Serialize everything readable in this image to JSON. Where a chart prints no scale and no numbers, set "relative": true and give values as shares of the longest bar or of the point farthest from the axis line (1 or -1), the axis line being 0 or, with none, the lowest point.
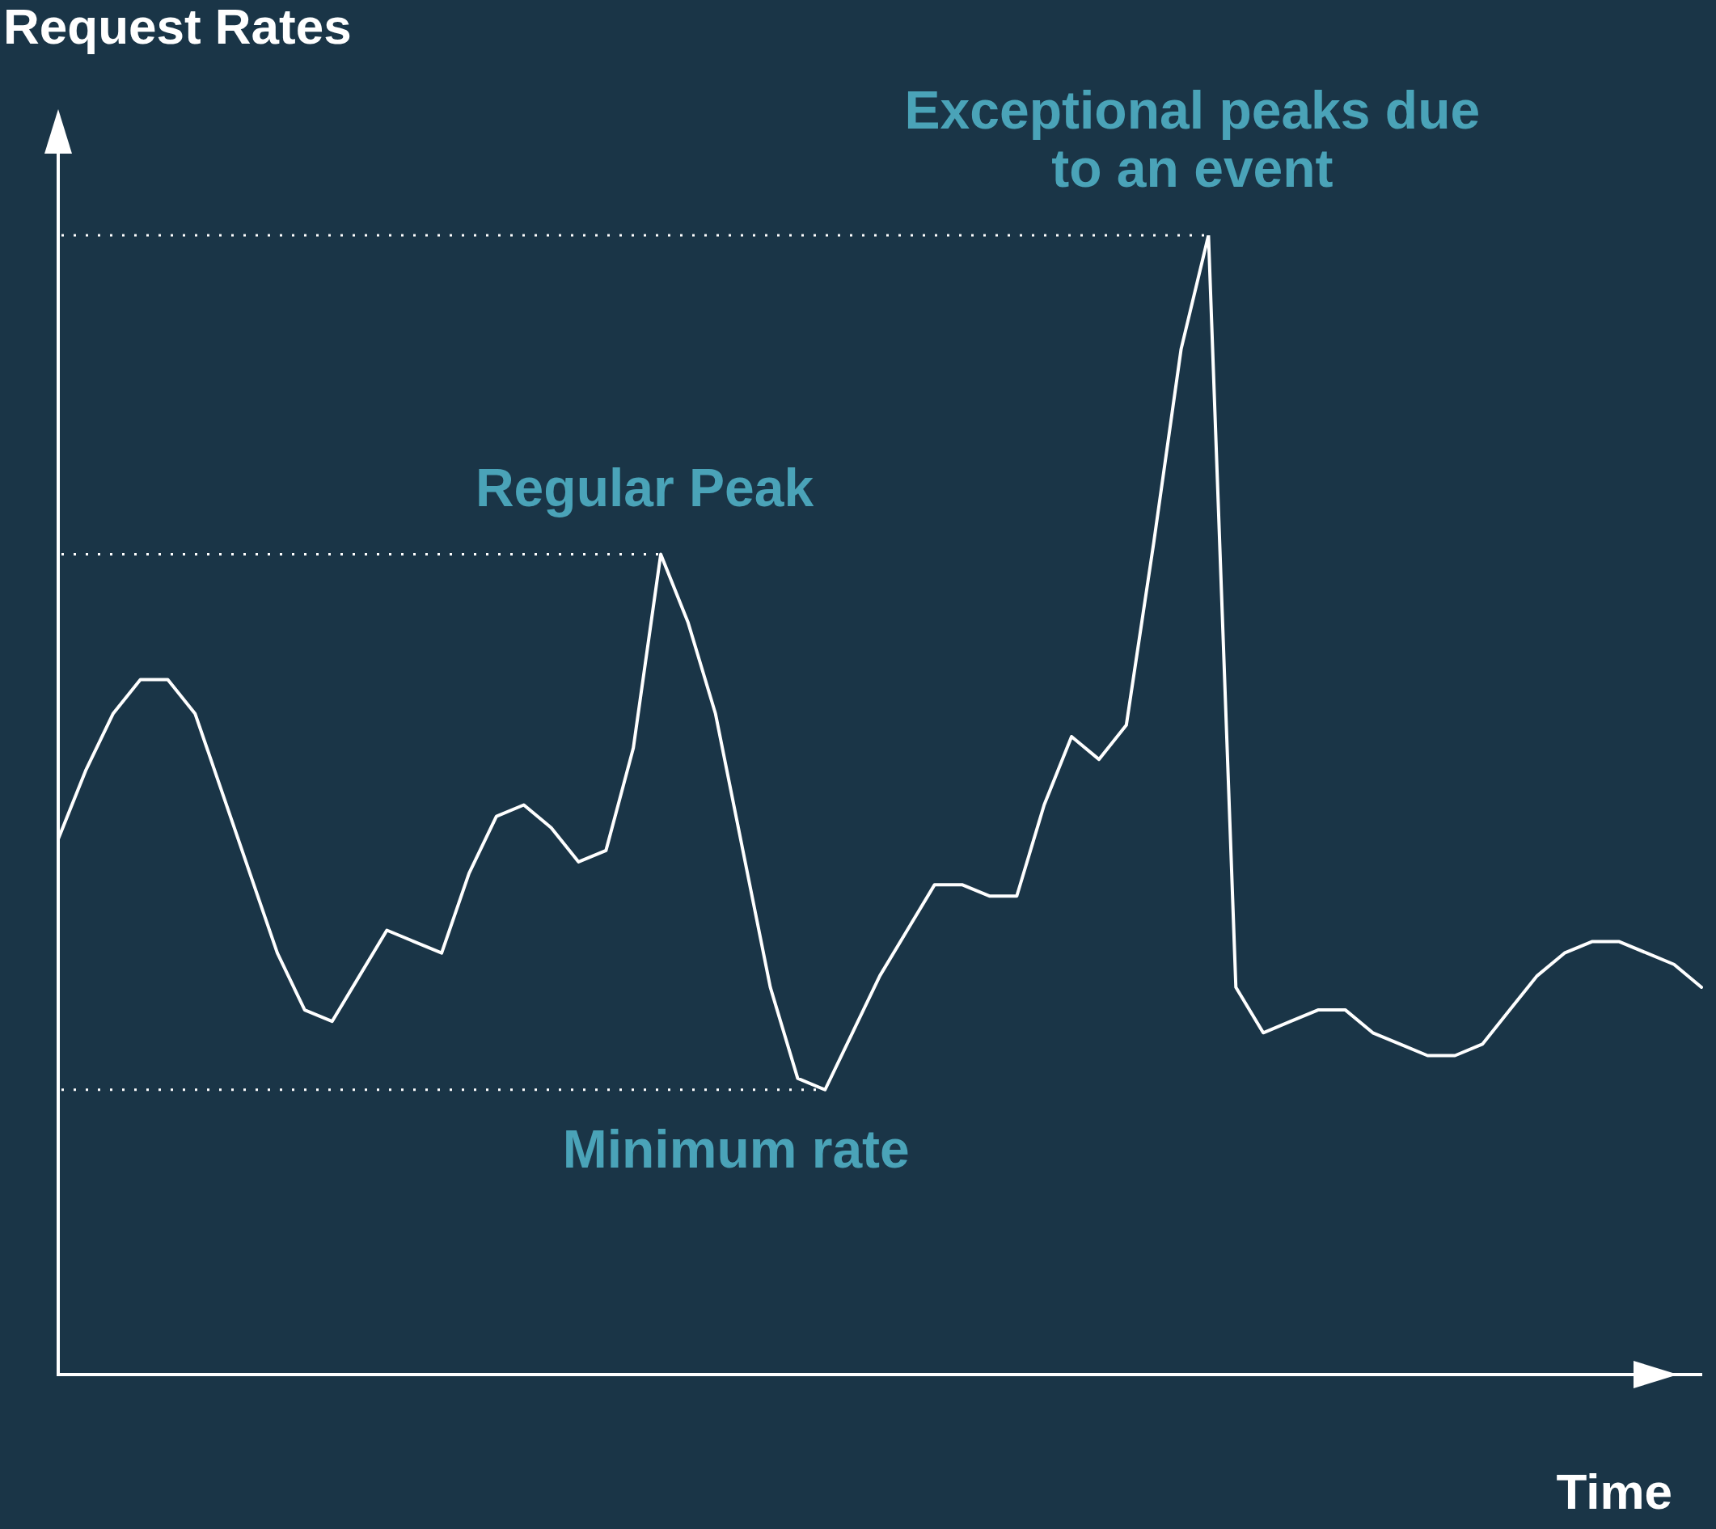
{
  "chart_data": {
    "type": "line",
    "relative": true,
    "ylabel": "Request Rates",
    "xlabel": "Time",
    "tick_labels": false,
    "marker": "none",
    "line_style": "solid",
    "categories": [
      null,
      null,
      null,
      null,
      null,
      null,
      null,
      null,
      null,
      null,
      null,
      null,
      null,
      null,
      null,
      null,
      null,
      null,
      null,
      null,
      null,
      null,
      null,
      null,
      null,
      null,
      null,
      null,
      null,
      null,
      null,
      null,
      null,
      null,
      null,
      null,
      null,
      null,
      null,
      null,
      null,
      null,
      null,
      null,
      null,
      null,
      null,
      null,
      null,
      null,
      null,
      null,
      null,
      null,
      null,
      null,
      null,
      null,
      null,
      null,
      null
    ],
    "series": [
      {
        "color": "#ffffff",
        "values": [
          0.47,
          0.53,
          0.58,
          0.61,
          0.61,
          0.58,
          0.51,
          0.44,
          0.37,
          0.32,
          0.31,
          0.35,
          0.39,
          0.38,
          0.37,
          0.44,
          0.49,
          0.5,
          0.48,
          0.45,
          0.46,
          0.55,
          0.72,
          0.66,
          0.58,
          0.46,
          0.34,
          0.26,
          0.25,
          0.3,
          0.35,
          0.39,
          0.43,
          0.43,
          0.42,
          0.42,
          0.5,
          0.56,
          0.54,
          0.57,
          0.73,
          0.9,
          1.0,
          0.34,
          0.3,
          0.31,
          0.32,
          0.32,
          0.3,
          0.29,
          0.28,
          0.28,
          0.29,
          0.32,
          0.35,
          0.37,
          0.38,
          0.38,
          0.37,
          0.36,
          0.34
        ]
      }
    ],
    "ref_lines": [
      {
        "axis": "y",
        "value": 1.0,
        "label": "Exceptional peaks due to an event",
        "color": "#ffffff",
        "line_style": "dotted"
      },
      {
        "axis": "y",
        "value": 0.72,
        "label": "Regular Peak",
        "color": "#ffffff",
        "line_style": "dotted"
      },
      {
        "axis": "y",
        "value": 0.25,
        "label": "Minimum rate",
        "color": "#ffffff",
        "line_style": "dotted"
      }
    ]
  }
}
